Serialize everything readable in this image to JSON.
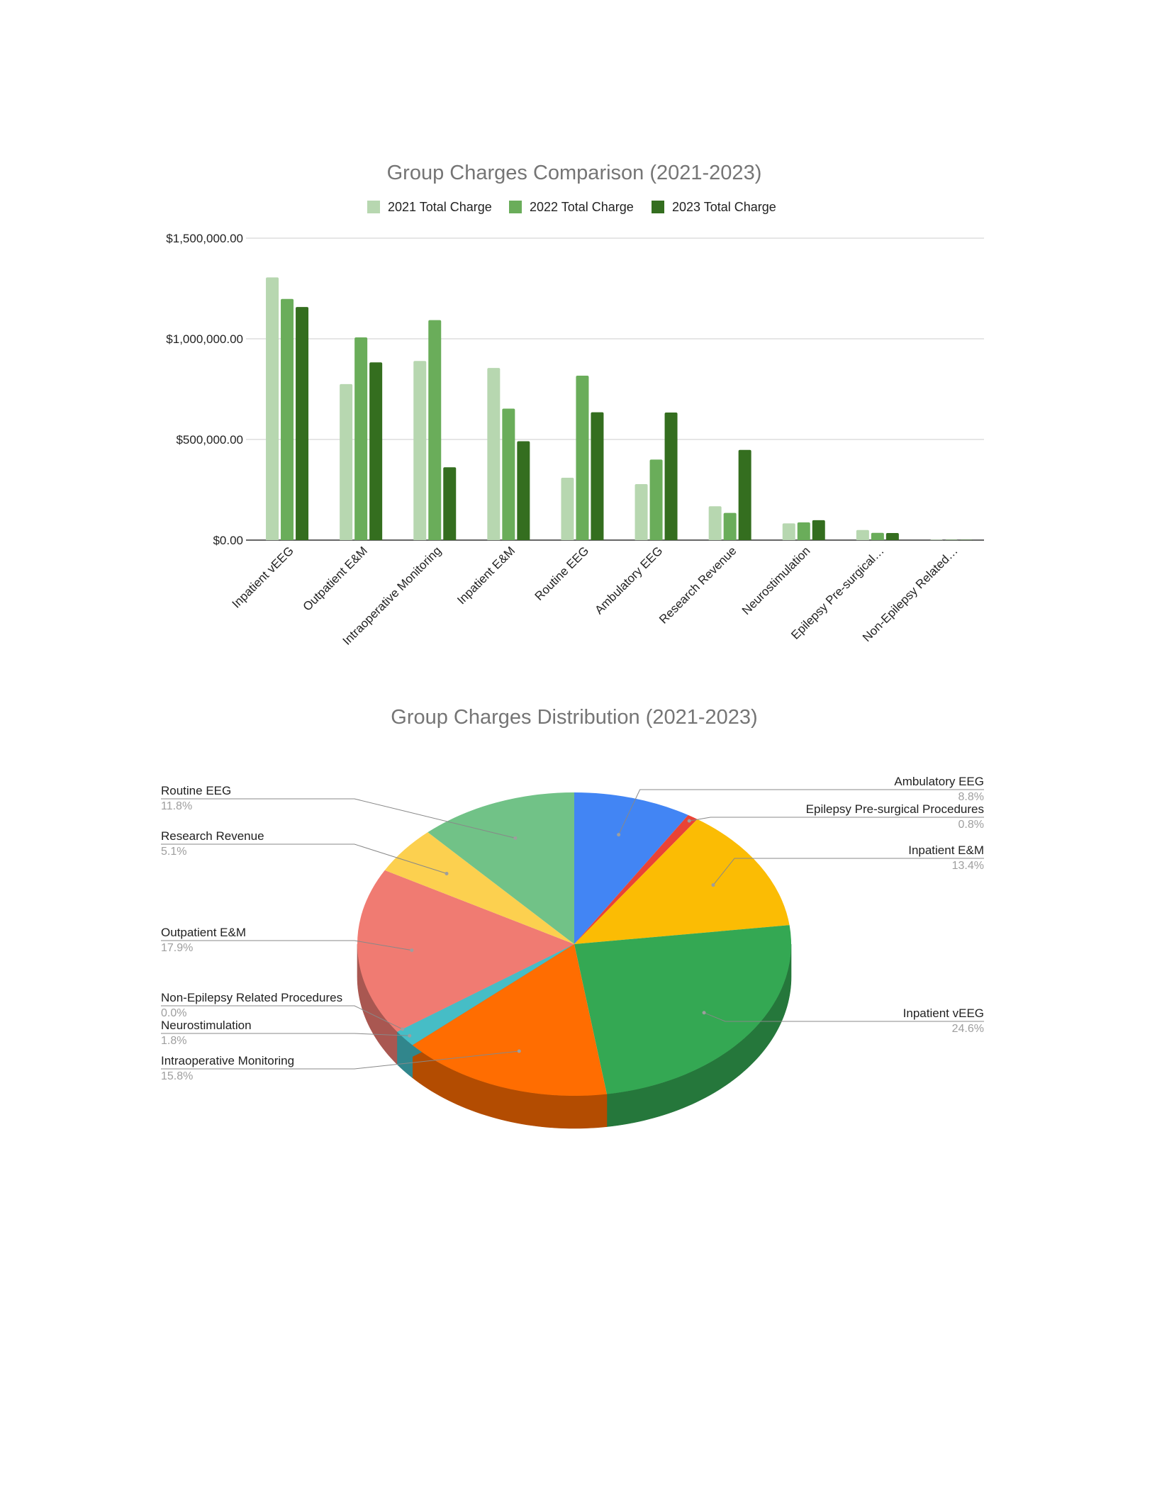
{
  "chart_data": [
    {
      "type": "bar",
      "title": "Group Charges Comparison (2021-2023)",
      "legend_position": "top",
      "grid": true,
      "ylim": [
        0,
        1500000
      ],
      "y_ticks": [
        {
          "value": 0,
          "label": "$0.00"
        },
        {
          "value": 500000,
          "label": "$500,000.00"
        },
        {
          "value": 1000000,
          "label": "$1,000,000.00"
        },
        {
          "value": 1500000,
          "label": "$1,500,000.00"
        }
      ],
      "categories": [
        "Inpatient vEEG",
        "Outpatient E&M",
        "Intraoperative Monitoring",
        "Inpatient E&M",
        "Routine EEG",
        "Ambulatory EEG",
        "Research Revenue",
        "Neurostimulation",
        "Epilepsy Pre-surgical…",
        "Non-Epilepsy Related…"
      ],
      "series": [
        {
          "name": "2021 Total Charge",
          "color": "#b7d7b0",
          "values": [
            1305000,
            775000,
            890000,
            855000,
            310000,
            278000,
            168000,
            83000,
            50000,
            2000
          ]
        },
        {
          "name": "2022 Total Charge",
          "color": "#6aad5a",
          "values": [
            1198000,
            1007000,
            1093000,
            653000,
            817000,
            400000,
            135000,
            88000,
            36000,
            1000
          ]
        },
        {
          "name": "2023 Total Charge",
          "color": "#346e1f",
          "values": [
            1158000,
            883000,
            362000,
            491000,
            635000,
            634000,
            448000,
            99000,
            35000,
            1000
          ]
        }
      ]
    },
    {
      "type": "pie",
      "style": "3d",
      "title": "Group Charges Distribution (2021-2023)",
      "slices": [
        {
          "label": "Ambulatory EEG",
          "pct_label": "8.8%",
          "value": 8.8,
          "color": "#4285f4",
          "side_color": "#2f5fae",
          "label_side": "right"
        },
        {
          "label": "Epilepsy Pre-surgical Procedures",
          "pct_label": "0.8%",
          "value": 0.8,
          "color": "#ea4335",
          "side_color": "#a83024",
          "label_side": "right"
        },
        {
          "label": "Inpatient E&M",
          "pct_label": "13.4%",
          "value": 13.4,
          "color": "#fbbc04",
          "side_color": "#b28503",
          "label_side": "right"
        },
        {
          "label": "Inpatient vEEG",
          "pct_label": "24.6%",
          "value": 24.6,
          "color": "#34a853",
          "side_color": "#25773b",
          "label_side": "right"
        },
        {
          "label": "Intraoperative Monitoring",
          "pct_label": "15.8%",
          "value": 15.8,
          "color": "#ff6d01",
          "side_color": "#b34c01",
          "label_side": "left"
        },
        {
          "label": "Neurostimulation",
          "pct_label": "1.8%",
          "value": 1.8,
          "color": "#46bdc6",
          "side_color": "#31868c",
          "label_side": "left"
        },
        {
          "label": "Non-Epilepsy Related Procedures",
          "pct_label": "0.0%",
          "value": 0.0,
          "color": "#7baaf7",
          "side_color": "#5679b0",
          "label_side": "left"
        },
        {
          "label": "Outpatient E&M",
          "pct_label": "17.9%",
          "value": 17.9,
          "color": "#f07b72",
          "side_color": "#a95751",
          "label_side": "left"
        },
        {
          "label": "Research Revenue",
          "pct_label": "5.1%",
          "value": 5.1,
          "color": "#fcd04f",
          "side_color": "#b39338",
          "label_side": "left"
        },
        {
          "label": "Routine EEG",
          "pct_label": "11.8%",
          "value": 11.8,
          "color": "#71c287",
          "side_color": "#508a60",
          "label_side": "left"
        }
      ]
    }
  ]
}
